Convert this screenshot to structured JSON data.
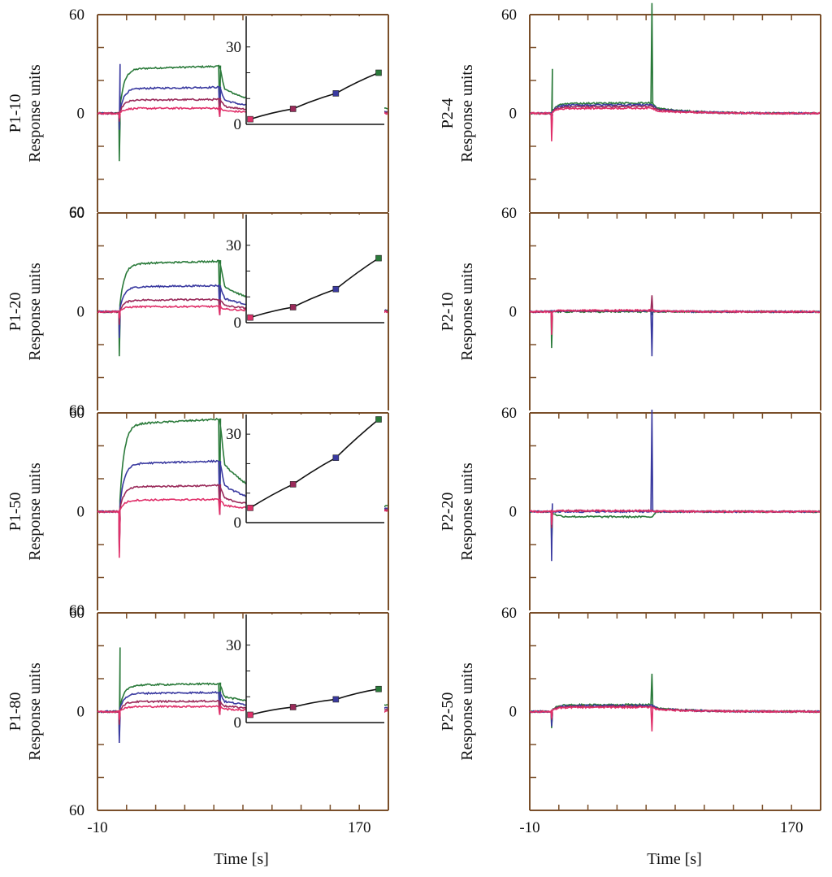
{
  "figure": {
    "xlabel": "Time [s]",
    "ylabel": "Response units",
    "colors": {
      "frame": "#7a4f2a",
      "green": "#2a7a3a",
      "blue": "#3a3aa0",
      "maroon": "#9a2a5a",
      "pink": "#e0306a",
      "fit": "#111111"
    }
  },
  "chart_data": [
    {
      "id": "P1-10",
      "type": "line",
      "column": "left",
      "row": 0,
      "panel_label": "P1-10",
      "ylabel": "Response units",
      "xlim": [
        -10,
        190
      ],
      "ylim": [
        -60,
        60
      ],
      "yticks": [
        0,
        60
      ],
      "ytick_labels": [
        "0",
        "60"
      ],
      "ybottom_label": "60",
      "xticks": [
        -10,
        170
      ],
      "xtick_labels": [
        "-10",
        "170"
      ],
      "series": [
        {
          "name": "green",
          "color": "#2a7a3a",
          "plateau": 27,
          "dissoc_end": 3,
          "spike_neg": -29,
          "spike_pos": 0,
          "inj_spike": -2
        },
        {
          "name": "blue",
          "color": "#3a3aa0",
          "plateau": 15,
          "dissoc_end": 1,
          "spike_neg": -10,
          "spike_pos": 30,
          "inj_spike": -2
        },
        {
          "name": "maroon",
          "color": "#9a2a5a",
          "plateau": 8,
          "dissoc_end": 0.5,
          "spike_neg": -5,
          "spike_pos": 0,
          "inj_spike": -2
        },
        {
          "name": "pink",
          "color": "#e0306a",
          "plateau": 3,
          "dissoc_end": 0,
          "spike_neg": -3,
          "spike_pos": 0,
          "inj_spike": -2
        }
      ],
      "inset": {
        "yticks": [
          0,
          30
        ],
        "ytick_labels": [
          "0",
          "30"
        ],
        "ylim": [
          0,
          40
        ],
        "x": [
          0,
          1,
          2,
          3
        ],
        "points": [
          2,
          6,
          12,
          20
        ],
        "point_colors": [
          "#e0306a",
          "#9a2a5a",
          "#3a3aa0",
          "#2a7a3a"
        ]
      }
    },
    {
      "id": "P1-20",
      "type": "line",
      "column": "left",
      "row": 1,
      "panel_label": "P1-20",
      "ylabel": "Response units",
      "xlim": [
        -10,
        190
      ],
      "ylim": [
        -60,
        60
      ],
      "yticks": [
        0,
        60
      ],
      "ytick_labels": [
        "0",
        "60"
      ],
      "ybottom_label": "60",
      "xticks": [
        -10,
        170
      ],
      "xtick_labels": [
        "-10",
        "170"
      ],
      "series": [
        {
          "name": "green",
          "color": "#2a7a3a",
          "plateau": 29,
          "dissoc_end": 1,
          "spike_neg": -27,
          "spike_pos": 0,
          "inj_spike": -2
        },
        {
          "name": "blue",
          "color": "#3a3aa0",
          "plateau": 15,
          "dissoc_end": 0.5,
          "spike_neg": -16,
          "spike_pos": 0,
          "inj_spike": -2
        },
        {
          "name": "maroon",
          "color": "#9a2a5a",
          "plateau": 7,
          "dissoc_end": 0.3,
          "spike_neg": -8,
          "spike_pos": 0,
          "inj_spike": -2
        },
        {
          "name": "pink",
          "color": "#e0306a",
          "plateau": 3,
          "dissoc_end": 0,
          "spike_neg": -4,
          "spike_pos": 0,
          "inj_spike": -2
        }
      ],
      "inset": {
        "yticks": [
          0,
          30
        ],
        "ytick_labels": [
          "0",
          "30"
        ],
        "ylim": [
          0,
          40
        ],
        "x": [
          0,
          1,
          2,
          3
        ],
        "points": [
          2,
          6,
          13,
          25
        ],
        "point_colors": [
          "#e0306a",
          "#9a2a5a",
          "#3a3aa0",
          "#2a7a3a"
        ]
      }
    },
    {
      "id": "P1-50",
      "type": "line",
      "column": "left",
      "row": 2,
      "panel_label": "P1-50",
      "ylabel": "Response units",
      "xlim": [
        -10,
        190
      ],
      "ylim": [
        -60,
        60
      ],
      "yticks": [
        0,
        60
      ],
      "ytick_labels": [
        "0",
        "60"
      ],
      "ybottom_label": "60",
      "xticks": [
        -10,
        170
      ],
      "xtick_labels": [
        "-10",
        "170"
      ],
      "series": [
        {
          "name": "green",
          "color": "#2a7a3a",
          "plateau": 53,
          "dissoc_end": 3,
          "spike_neg": -20,
          "spike_pos": 0,
          "inj_spike": -2
        },
        {
          "name": "blue",
          "color": "#3a3aa0",
          "plateau": 29,
          "dissoc_end": 2,
          "spike_neg": -22,
          "spike_pos": 0,
          "inj_spike": -2
        },
        {
          "name": "maroon",
          "color": "#9a2a5a",
          "plateau": 15,
          "dissoc_end": 1,
          "spike_neg": -25,
          "spike_pos": 0,
          "inj_spike": -2
        },
        {
          "name": "pink",
          "color": "#e0306a",
          "plateau": 7,
          "dissoc_end": 0.5,
          "spike_neg": -28,
          "spike_pos": 0,
          "inj_spike": -2
        }
      ],
      "inset": {
        "yticks": [
          0,
          30
        ],
        "ytick_labels": [
          "0",
          "30"
        ],
        "ylim": [
          0,
          35
        ],
        "x": [
          0,
          1,
          2,
          3
        ],
        "points": [
          5,
          13,
          22,
          35
        ],
        "point_colors": [
          "#e0306a",
          "#9a2a5a",
          "#3a3aa0",
          "#2a7a3a"
        ]
      }
    },
    {
      "id": "P1-80",
      "type": "line",
      "column": "left",
      "row": 3,
      "panel_label": "P1-80",
      "ylabel": "Response units",
      "xlim": [
        -10,
        190
      ],
      "ylim": [
        -60,
        60
      ],
      "yticks": [
        0,
        60
      ],
      "ytick_labels": [
        "0",
        "60"
      ],
      "ybottom_label": "60",
      "xticks": [
        -10,
        170
      ],
      "xtick_labels": [
        "-10",
        "170"
      ],
      "series": [
        {
          "name": "green",
          "color": "#2a7a3a",
          "plateau": 16,
          "dissoc_end": 4,
          "spike_neg": -15,
          "spike_pos": 39,
          "inj_spike": -2
        },
        {
          "name": "blue",
          "color": "#3a3aa0",
          "plateau": 11,
          "dissoc_end": 2,
          "spike_neg": -19,
          "spike_pos": 0,
          "inj_spike": -2
        },
        {
          "name": "maroon",
          "color": "#9a2a5a",
          "plateau": 6,
          "dissoc_end": 1,
          "spike_neg": -8,
          "spike_pos": 0,
          "inj_spike": -2
        },
        {
          "name": "pink",
          "color": "#e0306a",
          "plateau": 3,
          "dissoc_end": 0,
          "spike_neg": -5,
          "spike_pos": 0,
          "inj_spike": -2
        }
      ],
      "inset": {
        "yticks": [
          0,
          30
        ],
        "ytick_labels": [
          "0",
          "30"
        ],
        "ylim": [
          0,
          40
        ],
        "x": [
          0,
          1,
          2,
          3
        ],
        "points": [
          3,
          6,
          9,
          13
        ],
        "point_colors": [
          "#e0306a",
          "#9a2a5a",
          "#3a3aa0",
          "#2a7a3a"
        ]
      }
    },
    {
      "id": "P2-4",
      "type": "line",
      "column": "right",
      "row": 0,
      "panel_label": "P2-4",
      "ylabel": "Response units",
      "xlim": [
        -10,
        190
      ],
      "ylim": [
        -60,
        60
      ],
      "yticks": [
        0,
        60
      ],
      "ytick_labels": [
        "0",
        "60"
      ],
      "ybottom_label": "",
      "xticks": [
        -10,
        170
      ],
      "xtick_labels": [
        "-10",
        "170"
      ],
      "series": [
        {
          "name": "green",
          "color": "#2a7a3a",
          "plateau": 6,
          "dissoc_end": 0,
          "spike_neg": -5,
          "spike_pos": 27,
          "inj_spike": 67
        },
        {
          "name": "blue",
          "color": "#3a3aa0",
          "plateau": 5,
          "dissoc_end": 0,
          "spike_neg": -5,
          "spike_pos": 0,
          "inj_spike": 0
        },
        {
          "name": "maroon",
          "color": "#9a2a5a",
          "plateau": 4,
          "dissoc_end": 0,
          "spike_neg": -5,
          "spike_pos": 0,
          "inj_spike": 0
        },
        {
          "name": "pink",
          "color": "#e0306a",
          "plateau": 3,
          "dissoc_end": 0,
          "spike_neg": -17,
          "spike_pos": 0,
          "inj_spike": 0
        }
      ]
    },
    {
      "id": "P2-10",
      "type": "line",
      "column": "right",
      "row": 1,
      "panel_label": "P2-10",
      "ylabel": "Response units",
      "xlim": [
        -10,
        190
      ],
      "ylim": [
        -60,
        60
      ],
      "yticks": [
        0,
        60
      ],
      "ytick_labels": [
        "0",
        "60"
      ],
      "ybottom_label": "",
      "xticks": [
        -10,
        170
      ],
      "xtick_labels": [
        "-10",
        "170"
      ],
      "series": [
        {
          "name": "green",
          "color": "#2a7a3a",
          "plateau": 0,
          "dissoc_end": 0,
          "spike_neg": -22,
          "spike_pos": 0,
          "inj_spike": -2
        },
        {
          "name": "blue",
          "color": "#3a3aa0",
          "plateau": 0.5,
          "dissoc_end": 0,
          "spike_neg": -2,
          "spike_pos": 0,
          "inj_spike": -27
        },
        {
          "name": "maroon",
          "color": "#9a2a5a",
          "plateau": 0.5,
          "dissoc_end": 0,
          "spike_neg": -2,
          "spike_pos": 0,
          "inj_spike": 10
        },
        {
          "name": "pink",
          "color": "#e0306a",
          "plateau": 0.8,
          "dissoc_end": 0,
          "spike_neg": -14,
          "spike_pos": 0,
          "inj_spike": 0
        }
      ]
    },
    {
      "id": "P2-20",
      "type": "line",
      "column": "right",
      "row": 2,
      "panel_label": "P2-20",
      "ylabel": "Response units",
      "xlim": [
        -10,
        190
      ],
      "ylim": [
        -60,
        60
      ],
      "yticks": [
        0,
        60
      ],
      "ytick_labels": [
        "0",
        "60"
      ],
      "ybottom_label": "",
      "xticks": [
        -10,
        170
      ],
      "xtick_labels": [
        "-10",
        "170"
      ],
      "series": [
        {
          "name": "green",
          "color": "#2a7a3a",
          "plateau": -3,
          "dissoc_end": 0,
          "spike_neg": -20,
          "spike_pos": 0,
          "inj_spike": 0
        },
        {
          "name": "blue",
          "color": "#3a3aa0",
          "plateau": 0,
          "dissoc_end": 0,
          "spike_neg": -30,
          "spike_pos": 5,
          "inj_spike": 62
        },
        {
          "name": "maroon",
          "color": "#9a2a5a",
          "plateau": 0.5,
          "dissoc_end": 0,
          "spike_neg": -10,
          "spike_pos": 0,
          "inj_spike": 0
        },
        {
          "name": "pink",
          "color": "#e0306a",
          "plateau": 0.5,
          "dissoc_end": 0,
          "spike_neg": -8,
          "spike_pos": 0,
          "inj_spike": 0
        }
      ]
    },
    {
      "id": "P2-50",
      "type": "line",
      "column": "right",
      "row": 3,
      "panel_label": "P2-50",
      "ylabel": "Response units",
      "xlim": [
        -10,
        190
      ],
      "ylim": [
        -60,
        60
      ],
      "yticks": [
        0,
        60
      ],
      "ytick_labels": [
        "0",
        "60"
      ],
      "ybottom_label": "",
      "xticks": [
        -10,
        170
      ],
      "xtick_labels": [
        "-10",
        "170"
      ],
      "series": [
        {
          "name": "green",
          "color": "#2a7a3a",
          "plateau": 4,
          "dissoc_end": 0,
          "spike_neg": -10,
          "spike_pos": 0,
          "inj_spike": 23
        },
        {
          "name": "blue",
          "color": "#3a3aa0",
          "plateau": 3.5,
          "dissoc_end": 0,
          "spike_neg": -9,
          "spike_pos": 0,
          "inj_spike": 0
        },
        {
          "name": "maroon",
          "color": "#9a2a5a",
          "plateau": 3,
          "dissoc_end": 0,
          "spike_neg": -5,
          "spike_pos": 0,
          "inj_spike": 0
        },
        {
          "name": "pink",
          "color": "#e0306a",
          "plateau": 2.5,
          "dissoc_end": 0,
          "spike_neg": -4,
          "spike_pos": 0,
          "inj_spike": -12
        }
      ]
    }
  ]
}
